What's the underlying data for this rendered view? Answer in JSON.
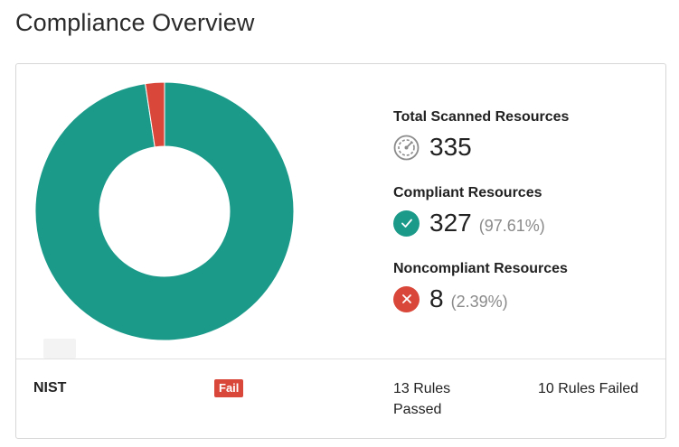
{
  "page": {
    "title": "Compliance Overview"
  },
  "colors": {
    "compliant": "#1b9a8a",
    "noncompliant": "#d9473a",
    "neutral_icon": "#8c8c8c"
  },
  "chart_data": {
    "type": "pie",
    "title": "",
    "categories": [
      "Compliant",
      "Noncompliant"
    ],
    "values": [
      327,
      8
    ],
    "colors": [
      "#1b9a8a",
      "#d9473a"
    ]
  },
  "stats": {
    "total": {
      "label": "Total Scanned Resources",
      "value": "335",
      "icon": "gauge-icon"
    },
    "compliant": {
      "label": "Compliant Resources",
      "value": "327",
      "percent": "(97.61%)",
      "icon": "check-icon"
    },
    "noncompliant": {
      "label": "Noncompliant Resources",
      "value": "8",
      "percent": "(2.39%)",
      "icon": "x-icon"
    }
  },
  "footer": {
    "standard": "NIST",
    "status_badge": "Fail",
    "rules_passed": "13 Rules Passed",
    "rules_failed": "10 Rules Failed"
  }
}
